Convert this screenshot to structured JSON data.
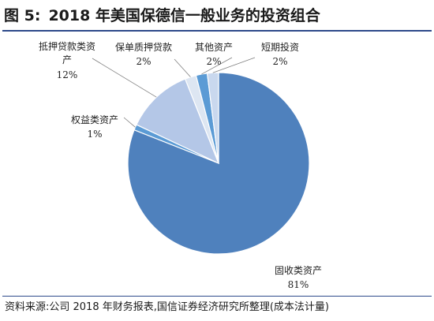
{
  "header": {
    "figure_label": "图 5:",
    "title": "2018 年美国保德信一般业务的投资组合"
  },
  "footer": {
    "source": "资料来源:公司 2018 年财务报表,国信证券经济研究所整理(成本法计量)"
  },
  "chart_data": {
    "type": "pie",
    "slices": [
      {
        "label": "固收类资产",
        "value": 81,
        "value_label": "81%",
        "color": "#4f81bd"
      },
      {
        "label": "权益类资产",
        "value": 1,
        "value_label": "1%",
        "color": "#5b9bd5"
      },
      {
        "label": "抵押贷款类资产",
        "value": 12,
        "value_label": "12%",
        "color": "#b4c7e7"
      },
      {
        "label": "保单质押贷款",
        "value": 2,
        "value_label": "2%",
        "color": "#dde6f2"
      },
      {
        "label": "其他资产",
        "value": 2,
        "value_label": "2%",
        "color": "#5b9bd5"
      },
      {
        "label": "短期投资",
        "value": 2,
        "value_label": "2%",
        "color": "#c9d8ee"
      }
    ]
  }
}
